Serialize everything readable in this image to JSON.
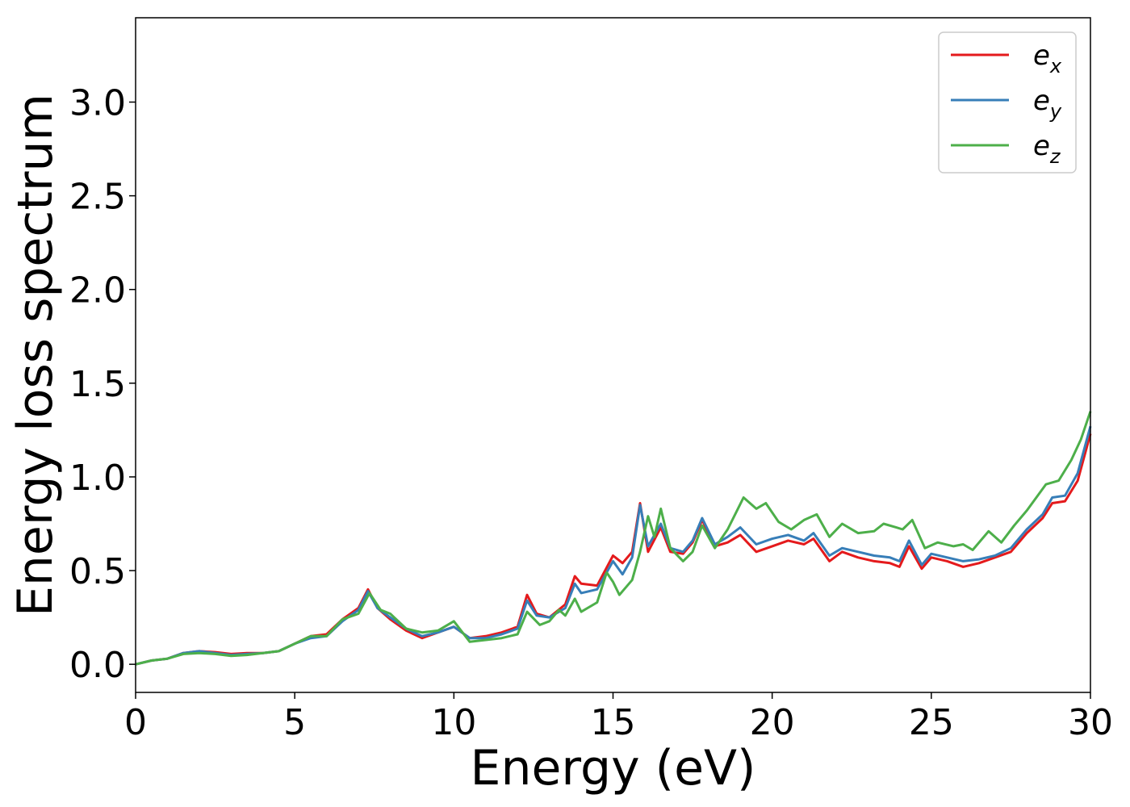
{
  "chart_data": {
    "type": "line",
    "xlabel": "Energy (eV)",
    "ylabel": "Energy loss spectrum",
    "xlim": [
      0,
      30
    ],
    "ylim": [
      -0.15,
      3.45
    ],
    "xticks": [
      0,
      5,
      10,
      15,
      20,
      25,
      30
    ],
    "xtick_labels": [
      "0",
      "5",
      "10",
      "15",
      "20",
      "25",
      "30"
    ],
    "yticks": [
      0.0,
      0.5,
      1.0,
      1.5,
      2.0,
      2.5,
      3.0
    ],
    "ytick_labels": [
      "0.0",
      "0.5",
      "1.0",
      "1.5",
      "2.0",
      "2.5",
      "3.0"
    ],
    "grid": false,
    "legend_position": "top-right",
    "series": [
      {
        "label": "e",
        "label_sub": "x",
        "color": "#e41a1c",
        "points": [
          [
            0,
            0
          ],
          [
            0.5,
            0.02
          ],
          [
            1,
            0.03
          ],
          [
            1.5,
            0.06
          ],
          [
            2,
            0.07
          ],
          [
            2.5,
            0.065
          ],
          [
            3,
            0.055
          ],
          [
            3.5,
            0.06
          ],
          [
            4,
            0.06
          ],
          [
            4.5,
            0.07
          ],
          [
            5,
            0.11
          ],
          [
            5.5,
            0.15
          ],
          [
            6,
            0.16
          ],
          [
            6.5,
            0.24
          ],
          [
            7,
            0.3
          ],
          [
            7.3,
            0.4
          ],
          [
            7.6,
            0.3
          ],
          [
            8,
            0.24
          ],
          [
            8.5,
            0.18
          ],
          [
            9,
            0.14
          ],
          [
            9.5,
            0.17
          ],
          [
            10,
            0.2
          ],
          [
            10.5,
            0.14
          ],
          [
            11,
            0.15
          ],
          [
            11.5,
            0.17
          ],
          [
            12,
            0.2
          ],
          [
            12.3,
            0.37
          ],
          [
            12.6,
            0.27
          ],
          [
            13,
            0.25
          ],
          [
            13.5,
            0.32
          ],
          [
            13.8,
            0.47
          ],
          [
            14,
            0.43
          ],
          [
            14.5,
            0.42
          ],
          [
            15,
            0.58
          ],
          [
            15.3,
            0.54
          ],
          [
            15.6,
            0.6
          ],
          [
            15.85,
            0.86
          ],
          [
            16.1,
            0.6
          ],
          [
            16.5,
            0.73
          ],
          [
            16.8,
            0.6
          ],
          [
            17.2,
            0.59
          ],
          [
            17.5,
            0.65
          ],
          [
            17.8,
            0.77
          ],
          [
            18.2,
            0.63
          ],
          [
            18.6,
            0.65
          ],
          [
            19,
            0.69
          ],
          [
            19.5,
            0.6
          ],
          [
            20,
            0.63
          ],
          [
            20.5,
            0.66
          ],
          [
            21,
            0.64
          ],
          [
            21.3,
            0.67
          ],
          [
            21.8,
            0.55
          ],
          [
            22.2,
            0.6
          ],
          [
            22.7,
            0.57
          ],
          [
            23.2,
            0.55
          ],
          [
            23.7,
            0.54
          ],
          [
            24,
            0.52
          ],
          [
            24.3,
            0.63
          ],
          [
            24.7,
            0.51
          ],
          [
            25,
            0.57
          ],
          [
            25.5,
            0.55
          ],
          [
            26,
            0.52
          ],
          [
            26.5,
            0.54
          ],
          [
            27,
            0.57
          ],
          [
            27.5,
            0.6
          ],
          [
            28,
            0.7
          ],
          [
            28.5,
            0.78
          ],
          [
            28.8,
            0.86
          ],
          [
            29.2,
            0.87
          ],
          [
            29.6,
            0.98
          ],
          [
            30,
            1.23
          ]
        ]
      },
      {
        "label": "e",
        "label_sub": "y",
        "color": "#377eb8",
        "points": [
          [
            0,
            0
          ],
          [
            0.5,
            0.02
          ],
          [
            1,
            0.03
          ],
          [
            1.5,
            0.06
          ],
          [
            2,
            0.07
          ],
          [
            2.5,
            0.06
          ],
          [
            3,
            0.05
          ],
          [
            3.5,
            0.055
          ],
          [
            4,
            0.06
          ],
          [
            4.5,
            0.07
          ],
          [
            5,
            0.11
          ],
          [
            5.5,
            0.14
          ],
          [
            6,
            0.15
          ],
          [
            6.5,
            0.23
          ],
          [
            7,
            0.29
          ],
          [
            7.3,
            0.39
          ],
          [
            7.6,
            0.3
          ],
          [
            8,
            0.25
          ],
          [
            8.5,
            0.19
          ],
          [
            9,
            0.15
          ],
          [
            9.5,
            0.17
          ],
          [
            10,
            0.2
          ],
          [
            10.5,
            0.14
          ],
          [
            11,
            0.14
          ],
          [
            11.5,
            0.16
          ],
          [
            12,
            0.19
          ],
          [
            12.3,
            0.34
          ],
          [
            12.6,
            0.26
          ],
          [
            13,
            0.25
          ],
          [
            13.5,
            0.3
          ],
          [
            13.8,
            0.43
          ],
          [
            14,
            0.38
          ],
          [
            14.5,
            0.4
          ],
          [
            15,
            0.55
          ],
          [
            15.3,
            0.48
          ],
          [
            15.6,
            0.57
          ],
          [
            15.85,
            0.85
          ],
          [
            16.1,
            0.63
          ],
          [
            16.5,
            0.75
          ],
          [
            16.8,
            0.62
          ],
          [
            17.2,
            0.6
          ],
          [
            17.5,
            0.66
          ],
          [
            17.8,
            0.78
          ],
          [
            18.2,
            0.64
          ],
          [
            18.6,
            0.68
          ],
          [
            19,
            0.73
          ],
          [
            19.5,
            0.64
          ],
          [
            20,
            0.67
          ],
          [
            20.5,
            0.69
          ],
          [
            21,
            0.66
          ],
          [
            21.3,
            0.7
          ],
          [
            21.8,
            0.58
          ],
          [
            22.2,
            0.62
          ],
          [
            22.7,
            0.6
          ],
          [
            23.2,
            0.58
          ],
          [
            23.7,
            0.57
          ],
          [
            24,
            0.55
          ],
          [
            24.3,
            0.66
          ],
          [
            24.7,
            0.53
          ],
          [
            25,
            0.59
          ],
          [
            25.5,
            0.57
          ],
          [
            26,
            0.55
          ],
          [
            26.5,
            0.56
          ],
          [
            27,
            0.58
          ],
          [
            27.5,
            0.62
          ],
          [
            28,
            0.72
          ],
          [
            28.5,
            0.8
          ],
          [
            28.8,
            0.89
          ],
          [
            29.2,
            0.9
          ],
          [
            29.6,
            1.02
          ],
          [
            30,
            1.27
          ]
        ]
      },
      {
        "label": "e",
        "label_sub": "z",
        "color": "#4daf4a",
        "points": [
          [
            0,
            0
          ],
          [
            0.5,
            0.02
          ],
          [
            1,
            0.03
          ],
          [
            1.5,
            0.055
          ],
          [
            2,
            0.06
          ],
          [
            2.5,
            0.055
          ],
          [
            3,
            0.045
          ],
          [
            3.5,
            0.05
          ],
          [
            4,
            0.06
          ],
          [
            4.5,
            0.07
          ],
          [
            5,
            0.11
          ],
          [
            5.5,
            0.15
          ],
          [
            6,
            0.15
          ],
          [
            6.5,
            0.24
          ],
          [
            7,
            0.27
          ],
          [
            7.35,
            0.38
          ],
          [
            7.7,
            0.29
          ],
          [
            8,
            0.27
          ],
          [
            8.5,
            0.19
          ],
          [
            9,
            0.17
          ],
          [
            9.5,
            0.18
          ],
          [
            10,
            0.23
          ],
          [
            10.5,
            0.12
          ],
          [
            11,
            0.13
          ],
          [
            11.5,
            0.14
          ],
          [
            12,
            0.16
          ],
          [
            12.3,
            0.28
          ],
          [
            12.7,
            0.21
          ],
          [
            13,
            0.23
          ],
          [
            13.3,
            0.29
          ],
          [
            13.5,
            0.26
          ],
          [
            13.8,
            0.35
          ],
          [
            14,
            0.28
          ],
          [
            14.5,
            0.33
          ],
          [
            14.8,
            0.49
          ],
          [
            15,
            0.44
          ],
          [
            15.2,
            0.37
          ],
          [
            15.6,
            0.45
          ],
          [
            15.85,
            0.6
          ],
          [
            16.1,
            0.79
          ],
          [
            16.3,
            0.68
          ],
          [
            16.5,
            0.83
          ],
          [
            16.8,
            0.62
          ],
          [
            17.2,
            0.55
          ],
          [
            17.5,
            0.6
          ],
          [
            17.8,
            0.74
          ],
          [
            18.2,
            0.62
          ],
          [
            18.6,
            0.72
          ],
          [
            19.1,
            0.89
          ],
          [
            19.5,
            0.83
          ],
          [
            19.8,
            0.86
          ],
          [
            20.2,
            0.76
          ],
          [
            20.6,
            0.72
          ],
          [
            21,
            0.77
          ],
          [
            21.4,
            0.8
          ],
          [
            21.8,
            0.68
          ],
          [
            22.2,
            0.75
          ],
          [
            22.7,
            0.7
          ],
          [
            23.2,
            0.71
          ],
          [
            23.5,
            0.75
          ],
          [
            23.9,
            0.73
          ],
          [
            24.1,
            0.72
          ],
          [
            24.4,
            0.77
          ],
          [
            24.8,
            0.62
          ],
          [
            25.2,
            0.65
          ],
          [
            25.7,
            0.63
          ],
          [
            26,
            0.64
          ],
          [
            26.3,
            0.61
          ],
          [
            26.8,
            0.71
          ],
          [
            27.2,
            0.65
          ],
          [
            27.6,
            0.74
          ],
          [
            28,
            0.82
          ],
          [
            28.6,
            0.96
          ],
          [
            29,
            0.98
          ],
          [
            29.4,
            1.09
          ],
          [
            29.7,
            1.2
          ],
          [
            30,
            1.35
          ]
        ]
      }
    ]
  }
}
